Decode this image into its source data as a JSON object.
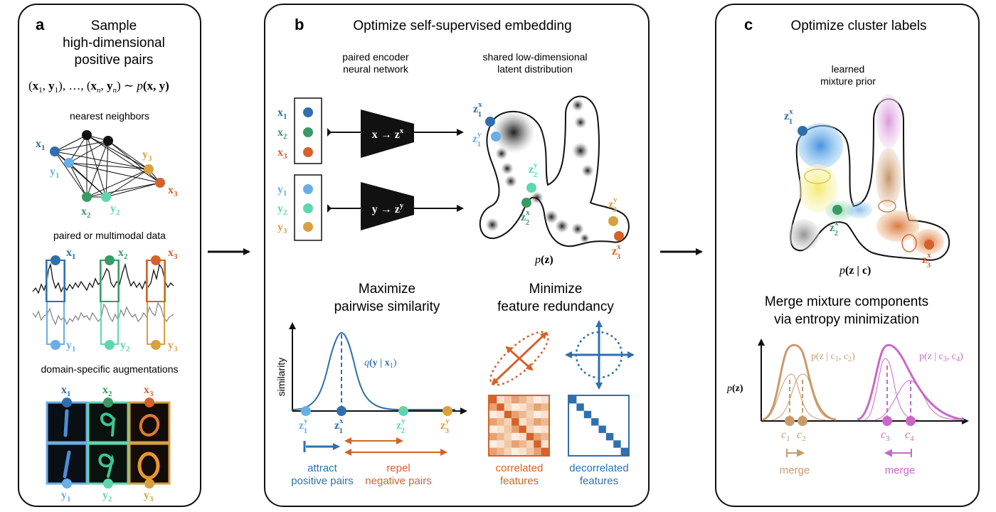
{
  "colors": {
    "blue_dark": "#2f6fad",
    "blue_light": "#6aaee6",
    "green_dark": "#3a9a64",
    "green_light": "#5fd6ae",
    "orange": "#d4622a",
    "gold": "#d9a040",
    "tan": "#c99a6a",
    "pink": "#c869c6",
    "black": "#111111",
    "gray": "#888888"
  },
  "panel_a": {
    "letter": "a",
    "title_lines": [
      "Sample",
      "high-dimensional",
      "positive pairs"
    ],
    "formula": {
      "prefix": "(",
      "x1": "x",
      "x1_sub": "1",
      "sep1": ", ",
      "y1": "y",
      "y1_sub": "1",
      "mid": "), …, (",
      "xn": "x",
      "xn_sub": "n",
      "sep2": ", ",
      "yn": "y",
      "yn_sub": "n",
      "suffix": ") ∼ ",
      "p": "p",
      "pxy": "(x, y)"
    },
    "nearest_neighbors_label": "nearest neighbors",
    "paired_data_label": "paired or multimodal data",
    "augmentations_label": "domain-specific augmentations",
    "node_labels": {
      "x": "x",
      "y": "y",
      "s1": "1",
      "s2": "2",
      "s3": "3"
    }
  },
  "panel_b": {
    "letter": "b",
    "title": "Optimize self-supervised embedding",
    "encoder_label_lines": [
      "paired encoder",
      "neural network"
    ],
    "latent_label_lines": [
      "shared low-dimensional",
      "latent distribution"
    ],
    "enc_x": "x → z",
    "enc_x_sup": "x",
    "enc_y": "y → z",
    "enc_y_sup": "y",
    "pz_p": "p",
    "pz_rest": "(z)",
    "z": "z",
    "maximize_lines": [
      "Maximize",
      "pairwise similarity"
    ],
    "minimize_lines": [
      "Minimize",
      "feature redundancy"
    ],
    "similarity_axis": "similarity",
    "q_label_q": "q",
    "q_label_rest": "(y | x",
    "q_label_sub": "1",
    "q_label_end": ")",
    "attract_lines": [
      "attract",
      "positive pairs"
    ],
    "repel_lines": [
      "repel",
      "negative pairs"
    ],
    "correlated_lines": [
      "correlated",
      "features"
    ],
    "decorrelated_lines": [
      "decorrelated",
      "features"
    ]
  },
  "panel_c": {
    "letter": "c",
    "title": "Optimize cluster labels",
    "prior_lines": [
      "learned",
      "mixture prior"
    ],
    "pzc_p": "p",
    "pzc_rest": "(z | c)",
    "merge_title_lines": [
      "Merge mixture components",
      "via entropy minimization"
    ],
    "pz_axis_p": "p",
    "pz_axis_rest": "(z)",
    "left_mix_label": "p(z | c",
    "left_mix_sub1": "1",
    "left_mix_mid": ", c",
    "left_mix_sub2": "2",
    "left_mix_end": ")",
    "right_mix_label": "p(z | c",
    "right_mix_sub1": "3",
    "right_mix_mid": ", c",
    "right_mix_sub2": "4",
    "right_mix_end": ")",
    "c": "c",
    "c1": "1",
    "c2": "2",
    "c3": "3",
    "c4": "4",
    "merge_left": "merge",
    "merge_right": "merge"
  }
}
